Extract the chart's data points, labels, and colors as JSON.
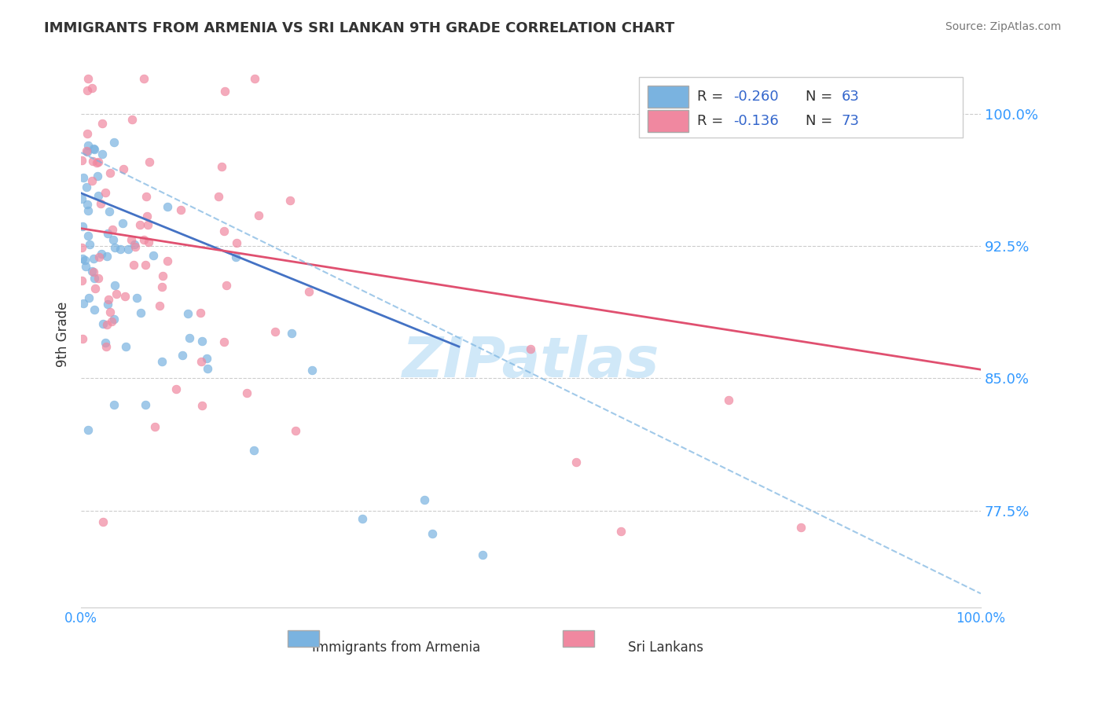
{
  "title": "IMMIGRANTS FROM ARMENIA VS SRI LANKAN 9TH GRADE CORRELATION CHART",
  "source_text": "Source: ZipAtlas.com",
  "xlabel": "",
  "ylabel": "9th Grade",
  "x_tick_labels": [
    "0.0%",
    "100.0%"
  ],
  "y_tick_labels": [
    "100.0%",
    "92.5%",
    "85.0%",
    "77.5%"
  ],
  "y_tick_values": [
    1.0,
    0.925,
    0.85,
    0.775
  ],
  "legend_entries": [
    {
      "label": "R = -0.260   N = 63",
      "color": "#aec6e8"
    },
    {
      "label": "R = -0.136   N = 73",
      "color": "#f4b8c8"
    }
  ],
  "legend_labels_bottom": [
    "Immigrants from Armenia",
    "Sri Lankans"
  ],
  "armenia_color": "#7ab3e0",
  "srilanka_color": "#f088a0",
  "trend_armenia_color": "#4472c4",
  "trend_srilanka_color": "#e05070",
  "dashed_line_color": "#7ab3e0",
  "background_color": "#ffffff",
  "grid_color": "#cccccc",
  "title_color": "#333333",
  "axis_label_color": "#333333",
  "tick_color": "#3399ff",
  "watermark_text": "ZIPatlas",
  "watermark_color": "#d0e8f8",
  "seed": 42,
  "armenia_R": -0.26,
  "armenia_N": 63,
  "srilanka_R": -0.136,
  "srilanka_N": 73,
  "xmin": 0.0,
  "xmax": 1.0,
  "ymin": 0.72,
  "ymax": 1.03
}
